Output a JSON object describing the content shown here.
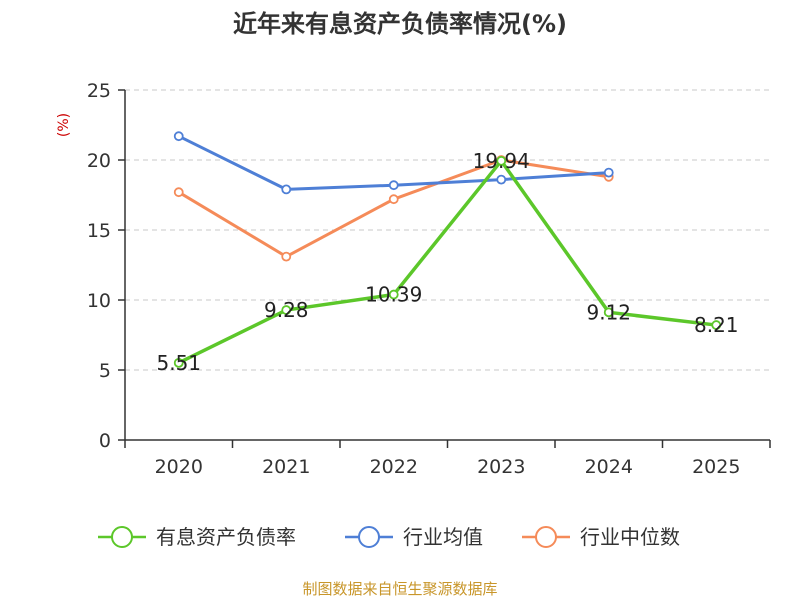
{
  "title": "近年来有息资产负债率情况(%)",
  "source": "制图数据来自恒生聚源数据库",
  "chart_data": {
    "type": "line",
    "title": "近年来有息资产负债率情况(%)",
    "ylabel": "(%)",
    "xlabel": "",
    "categories": [
      "2020",
      "2021",
      "2022",
      "2023",
      "2024",
      "2025"
    ],
    "ylim": [
      0,
      25
    ],
    "yticks": [
      0,
      5,
      10,
      15,
      20,
      25
    ],
    "grid": true,
    "legend_position": "bottom",
    "series": [
      {
        "name": "有息资产负债率",
        "color": "#5cc72a",
        "values": [
          5.51,
          9.28,
          10.39,
          19.94,
          9.12,
          8.21
        ],
        "labels": [
          "5.51",
          "9.28",
          "10.39",
          "19.94",
          "9.12",
          "8.21"
        ]
      },
      {
        "name": "行业均值",
        "color": "#4e7fd6",
        "values": [
          21.7,
          17.9,
          18.2,
          18.6,
          19.1,
          null
        ]
      },
      {
        "name": "行业中位数",
        "color": "#f58b59",
        "values": [
          17.7,
          13.1,
          17.2,
          20.0,
          18.8,
          null
        ]
      }
    ]
  }
}
